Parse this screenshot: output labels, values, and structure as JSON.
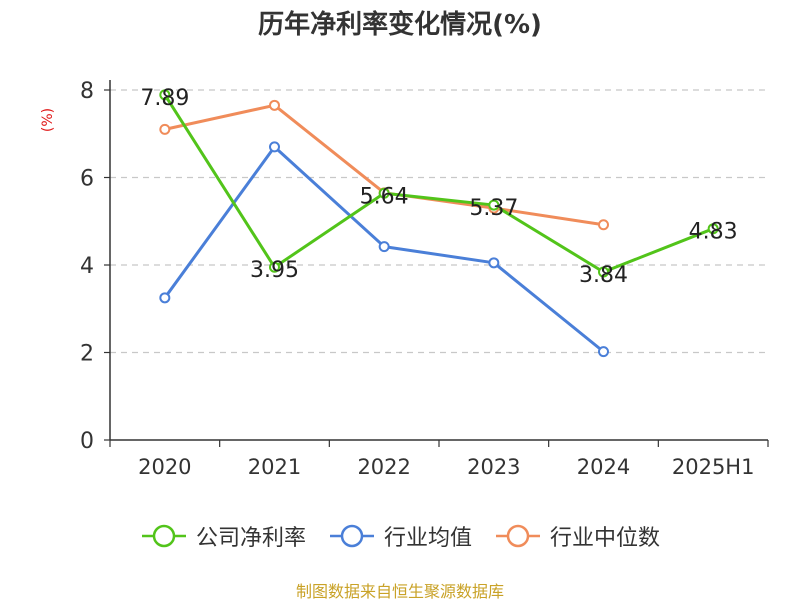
{
  "chart_data": {
    "type": "line",
    "title": "历年净利率变化情况(%)",
    "y_unit_label": "(%)",
    "categories": [
      "2020",
      "2021",
      "2022",
      "2023",
      "2024",
      "2025H1"
    ],
    "ylim": [
      0,
      8
    ],
    "yticks": [
      0,
      2,
      4,
      6,
      8
    ],
    "grid": "horizontal-dashed",
    "legend_position": "bottom",
    "series": [
      {
        "name": "公司净利率",
        "color": "#52c41a",
        "values": [
          7.89,
          3.95,
          5.64,
          5.37,
          3.84,
          4.83
        ],
        "labels": [
          "7.89",
          "3.95",
          "5.64",
          "5.37",
          "3.84",
          "4.83"
        ]
      },
      {
        "name": "行业均值",
        "color": "#4a7fd8",
        "values": [
          3.25,
          6.7,
          4.42,
          4.05,
          2.02,
          null
        ]
      },
      {
        "name": "行业中位数",
        "color": "#f08c5a",
        "values": [
          7.1,
          7.65,
          5.65,
          5.3,
          4.92,
          null
        ]
      }
    ]
  },
  "footer": {
    "source": "制图数据来自恒生聚源数据库"
  }
}
